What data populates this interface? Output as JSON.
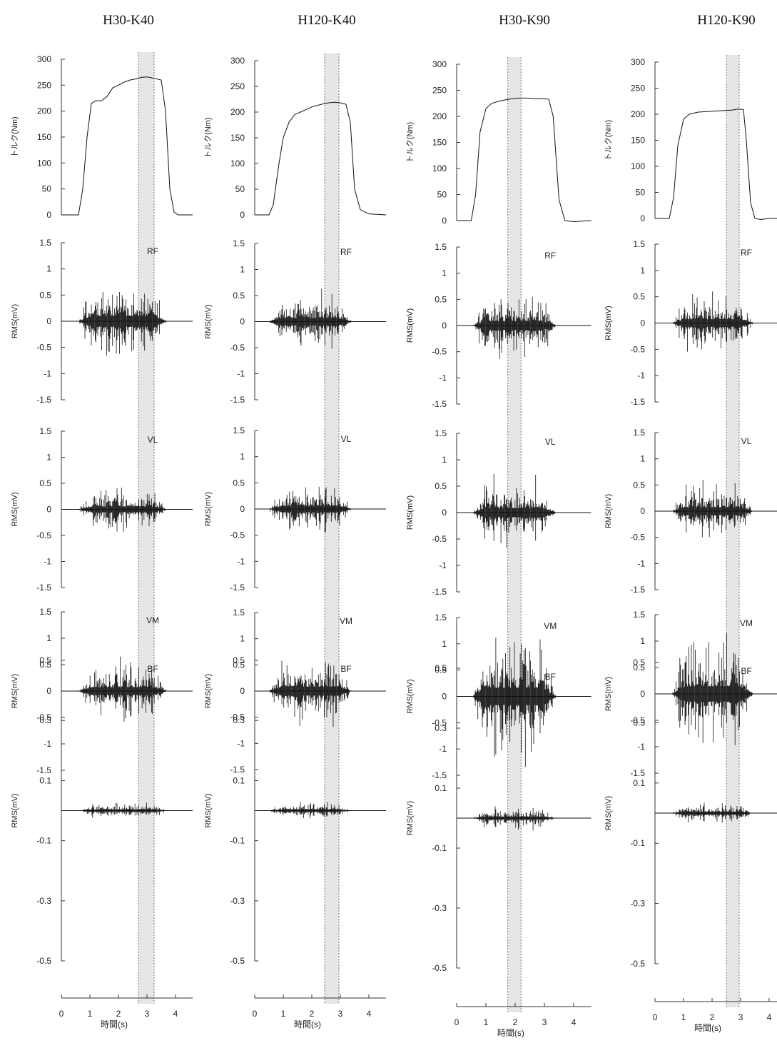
{
  "chart_data": {
    "type": "line",
    "columns": [
      {
        "title": "H30-K40",
        "window": [
          2.7,
          3.25
        ]
      },
      {
        "title": "H120-K40",
        "window": [
          2.45,
          2.95
        ]
      },
      {
        "title": "H30-K90",
        "window": [
          1.75,
          2.2
        ]
      },
      {
        "title": "H120-K90",
        "window": [
          2.5,
          2.95
        ]
      }
    ],
    "rows": [
      {
        "kind": "torque",
        "ylabel": "トルク(Nm)",
        "muscle": "",
        "ylim": [
          0,
          300
        ],
        "yticks": [
          "0",
          "50",
          "100",
          "150",
          "200",
          "250",
          "300"
        ]
      },
      {
        "kind": "emg",
        "ylabel": "RMS(mV)",
        "muscle": "RF",
        "ylim": [
          -1.5,
          1.5
        ],
        "yticks": [
          "-1.5",
          "-1",
          "-0.5",
          "0",
          "0.5",
          "1",
          "1.5"
        ]
      },
      {
        "kind": "emg",
        "ylabel": "RMS(mV)",
        "muscle": "VL",
        "ylim": [
          -1.5,
          1.5
        ],
        "yticks": [
          "-1.5",
          "-1",
          "-0.5",
          "0",
          "0.5",
          "1",
          "1.5"
        ]
      },
      {
        "kind": "emg",
        "ylabel": "RMS(mV)",
        "muscle": "VM",
        "ylim": [
          -1.5,
          1.5
        ],
        "yticks": [
          "-1.5",
          "-1",
          "-0.5",
          "0",
          "0.5",
          "1",
          "1.5"
        ]
      },
      {
        "kind": "emg",
        "ylabel": "RMS(mV)",
        "muscle": "BF",
        "ylim": [
          -0.5,
          0.5
        ],
        "yticks": [
          "-0.5",
          "-0.3",
          "-0.1",
          "0.1",
          "0.3",
          "0.5"
        ]
      }
    ],
    "xlabel": "時間(s)",
    "xlim": [
      0,
      4.6
    ],
    "xticks": [
      "0",
      "1",
      "2",
      "3",
      "4"
    ],
    "torque_series": [
      {
        "column": "H30-K40",
        "x": [
          0,
          0.6,
          0.75,
          0.9,
          1.05,
          1.2,
          1.4,
          1.6,
          1.8,
          2.0,
          2.2,
          2.4,
          2.6,
          2.8,
          3.0,
          3.2,
          3.5,
          3.65,
          3.8,
          3.95,
          4.1,
          4.6
        ],
        "y": [
          0,
          0,
          50,
          150,
          215,
          220,
          220,
          228,
          245,
          250,
          256,
          260,
          262,
          265,
          266,
          264,
          260,
          200,
          50,
          5,
          0,
          0
        ]
      },
      {
        "column": "H120-K40",
        "x": [
          0,
          0.5,
          0.65,
          0.85,
          1.0,
          1.2,
          1.4,
          1.6,
          1.8,
          2.0,
          2.2,
          2.4,
          2.6,
          2.8,
          3.0,
          3.2,
          3.35,
          3.5,
          3.7,
          4.0,
          4.6
        ],
        "y": [
          0,
          0,
          20,
          100,
          150,
          180,
          195,
          200,
          205,
          210,
          213,
          216,
          218,
          219,
          218,
          215,
          180,
          50,
          10,
          2,
          0
        ]
      },
      {
        "column": "H30-K90",
        "x": [
          0,
          0.5,
          0.65,
          0.8,
          1.0,
          1.2,
          1.5,
          1.8,
          2.1,
          2.4,
          2.7,
          3.0,
          3.15,
          3.3,
          3.5,
          3.7,
          4.0,
          4.6
        ],
        "y": [
          0,
          0,
          50,
          170,
          215,
          225,
          230,
          233,
          235,
          235,
          234,
          234,
          233,
          200,
          40,
          0,
          -2,
          0
        ],
        "note": ""
      },
      {
        "column": "H120-K90",
        "x": [
          0,
          0.5,
          0.65,
          0.8,
          1.0,
          1.2,
          1.5,
          1.8,
          2.1,
          2.4,
          2.7,
          2.9,
          3.1,
          3.2,
          3.35,
          3.5,
          3.7,
          4.0,
          4.6
        ],
        "y": [
          0,
          0,
          40,
          140,
          190,
          200,
          204,
          205,
          206,
          207,
          208,
          210,
          209,
          150,
          30,
          0,
          -2,
          0,
          0
        ]
      }
    ],
    "emg_series": [
      {
        "column": "H30-K40",
        "active": [
          0.6,
          3.7
        ],
        "amplitude": {
          "RF": 0.85,
          "VL": 0.45,
          "VM": 0.6,
          "BF": 0.03
        }
      },
      {
        "column": "H120-K40",
        "active": [
          0.5,
          3.4
        ],
        "amplitude": {
          "RF": 0.6,
          "VL": 0.5,
          "VM": 0.7,
          "BF": 0.03
        }
      },
      {
        "column": "H30-K90",
        "active": [
          0.55,
          3.4
        ],
        "amplitude": {
          "RF": 0.7,
          "VL": 0.7,
          "VM": 1.35,
          "BF": 0.04
        }
      },
      {
        "column": "H120-K90",
        "active": [
          0.6,
          3.45
        ],
        "amplitude": {
          "RF": 0.6,
          "VL": 0.6,
          "VM": 1.2,
          "BF": 0.04
        }
      }
    ]
  }
}
